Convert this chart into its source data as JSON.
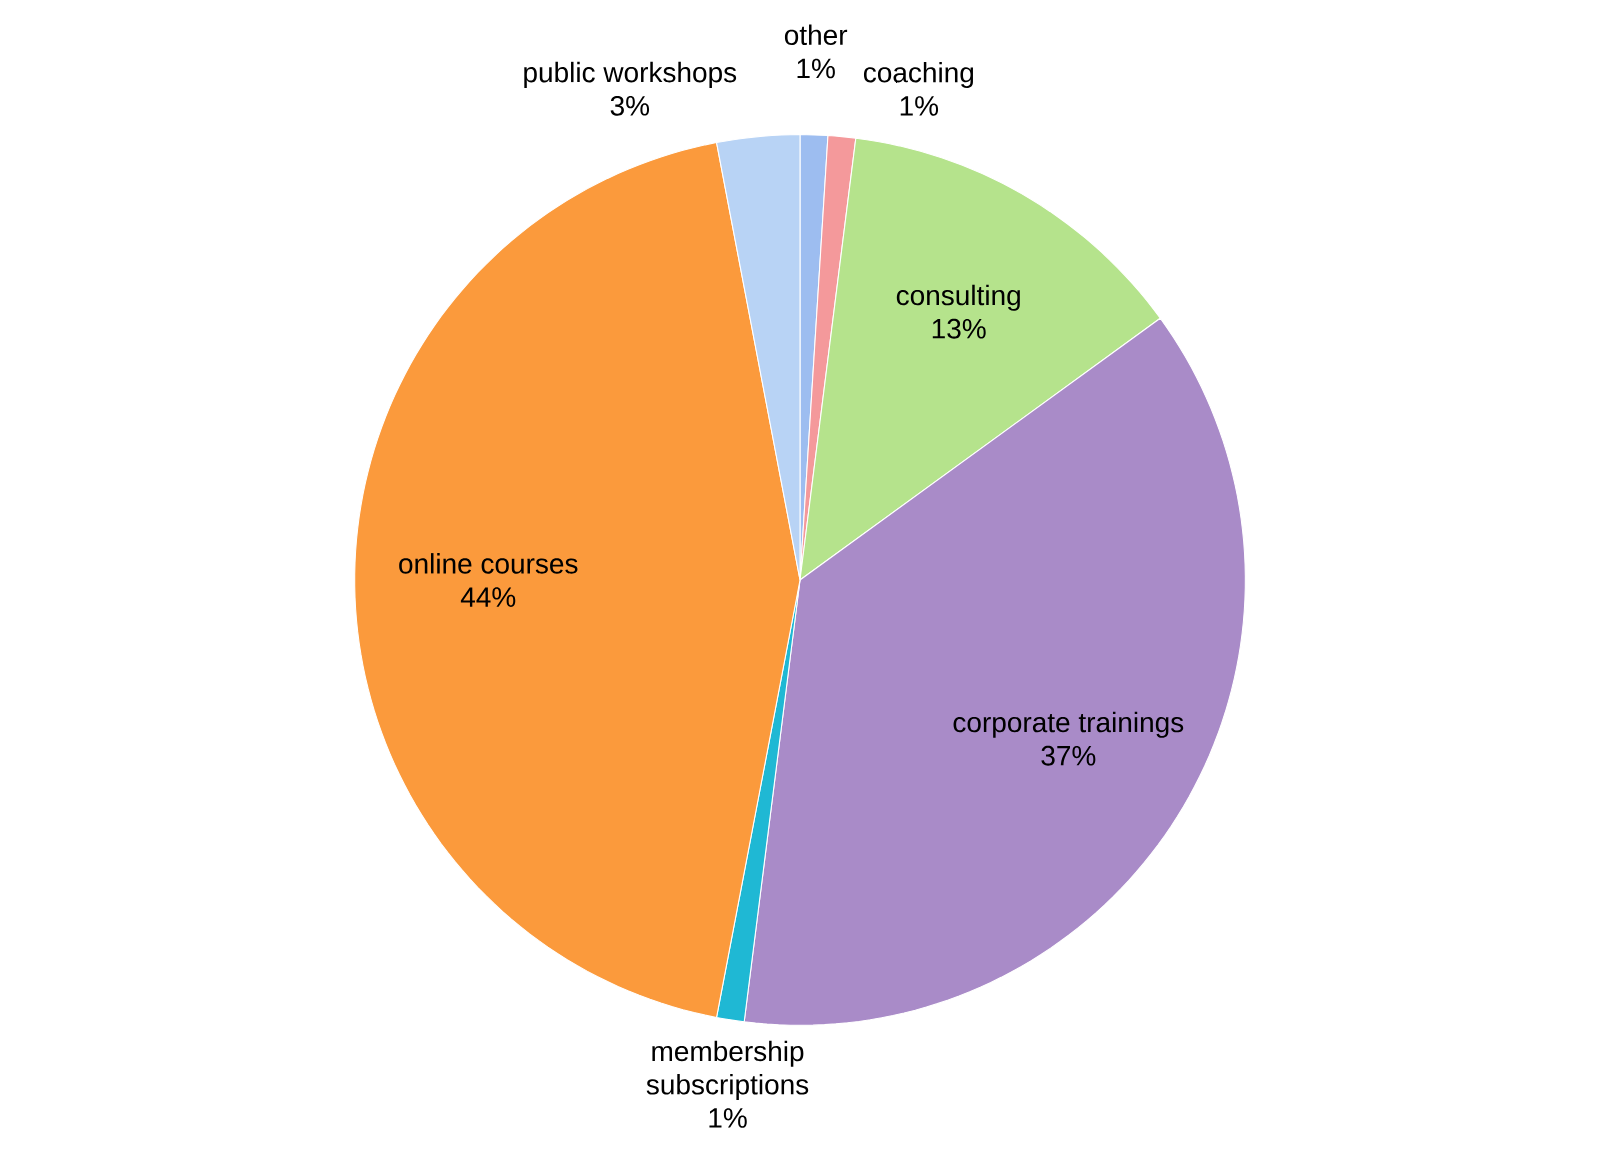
{
  "chart_data": {
    "type": "pie",
    "categories": [
      "other",
      "coaching",
      "consulting",
      "corporate trainings",
      "membership subscriptions",
      "online courses",
      "public workshops"
    ],
    "values": [
      1,
      1,
      13,
      37,
      1,
      44,
      3
    ],
    "value_labels": [
      "1%",
      "1%",
      "13%",
      "37%",
      "1%",
      "44%",
      "3%"
    ],
    "colors": [
      "#9dbdf0",
      "#f4999b",
      "#b5e38c",
      "#a98bc8",
      "#1fb8d4",
      "#fb9a3c",
      "#b8d3f5"
    ]
  }
}
